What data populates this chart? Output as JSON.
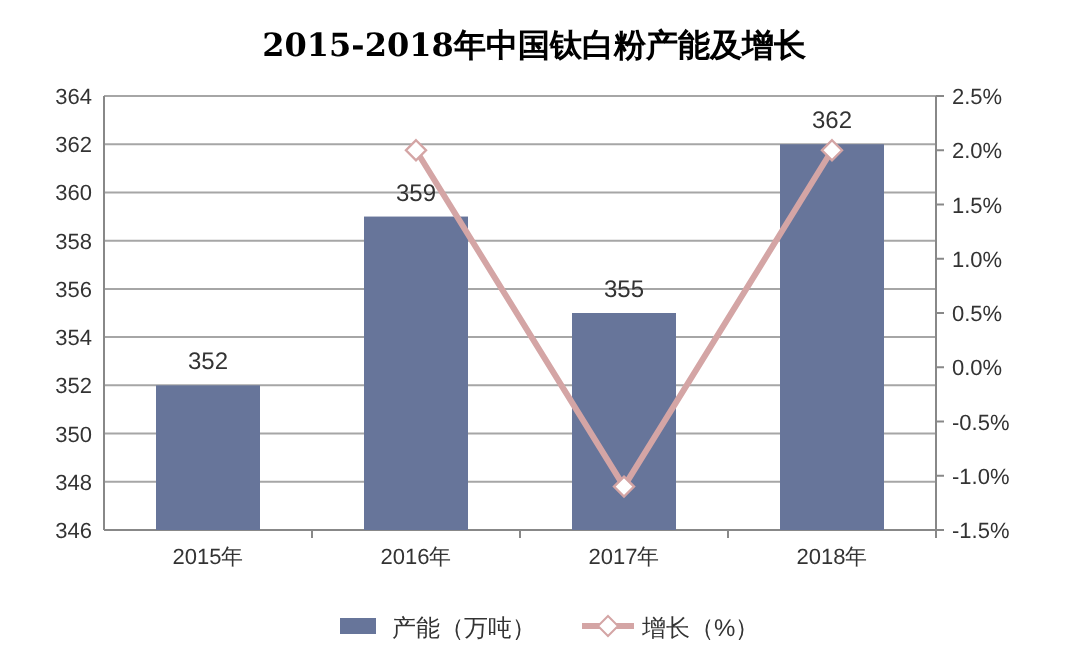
{
  "chart_data": {
    "type": "bar",
    "title": "2015-2018年中国钛白粉产能及增长",
    "categories": [
      "2015年",
      "2016年",
      "2017年",
      "2018年"
    ],
    "series": [
      {
        "name": "产能（万吨）",
        "color": "#67759a",
        "values": [
          352,
          359,
          355,
          362
        ],
        "data_labels": true
      },
      {
        "name": "增长（%）",
        "type": "line",
        "axis": "y2",
        "color": "#d4a5a5",
        "marker": "diamond",
        "values": [
          null,
          2.0,
          -1.1,
          2.0
        ]
      }
    ],
    "ylim": [
      346,
      364
    ],
    "yticks": [
      346,
      348,
      350,
      352,
      354,
      356,
      358,
      360,
      362,
      364
    ],
    "y2lim": [
      -1.5,
      2.5
    ],
    "y2ticks": [
      {
        "value": -1.5,
        "label": "-1.5%"
      },
      {
        "value": -1.0,
        "label": "-1.0%"
      },
      {
        "value": -0.5,
        "label": "-0.5%"
      },
      {
        "value": 0,
        "label": "0.0%"
      },
      {
        "value": 0.5,
        "label": "0.5%"
      },
      {
        "value": 1.0,
        "label": "1.0%"
      },
      {
        "value": 1.5,
        "label": "1.5%"
      },
      {
        "value": 2.0,
        "label": "2.0%"
      },
      {
        "value": 2.5,
        "label": "2.5%"
      }
    ],
    "grid": "y",
    "legend": "bottom"
  }
}
